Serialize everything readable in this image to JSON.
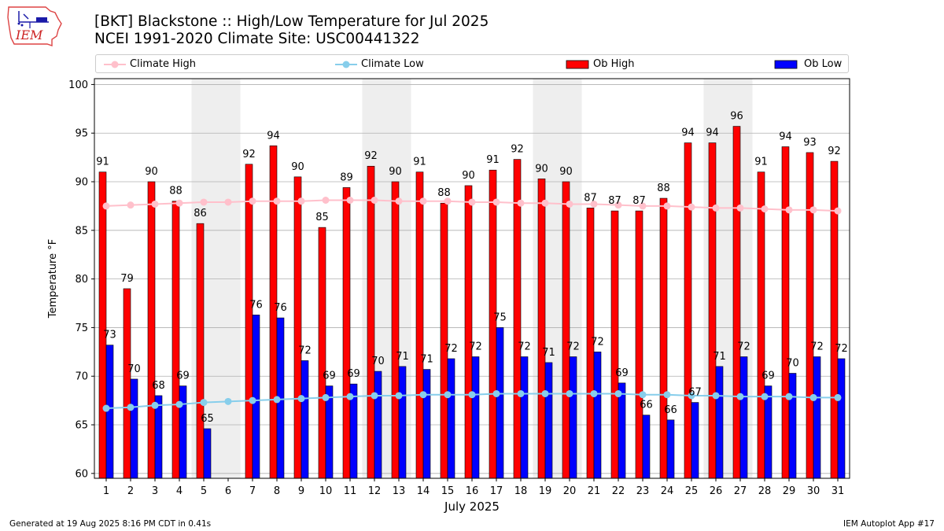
{
  "header": {
    "title_line1": "[BKT] Blackstone :: High/Low Temperature for Jul 2025",
    "title_line2": "NCEI 1991-2020 Climate Site: USC00441322",
    "logo_text": "IEM"
  },
  "legend": {
    "climate_high": "Climate High",
    "climate_low": "Climate Low",
    "ob_high": "Ob High",
    "ob_low": "Ob Low"
  },
  "footer": {
    "generated": "Generated at 19 Aug 2025 8:16 PM CDT in 0.41s",
    "app": "IEM Autoplot App #17"
  },
  "colors": {
    "ob_high": "#ff0000",
    "ob_low": "#0000ff",
    "climate_high": "#ffc0cb",
    "climate_low": "#87ceeb",
    "weekend_shade": "#eeeeee",
    "grid": "#b0b0b0"
  },
  "chart_data": {
    "type": "bar",
    "title": "[BKT] Blackstone :: High/Low Temperature for Jul 2025",
    "subtitle": "NCEI 1991-2020 Climate Site: USC00441322",
    "xlabel": "July 2025",
    "ylabel": "Temperature °F",
    "ylim": [
      59.5,
      100.6
    ],
    "yticks": [
      60,
      65,
      70,
      75,
      80,
      85,
      90,
      95,
      100
    ],
    "grid": "horizontal",
    "legend_position": "top",
    "categories": [
      "1",
      "2",
      "3",
      "4",
      "5",
      "6",
      "7",
      "8",
      "9",
      "10",
      "11",
      "12",
      "13",
      "14",
      "15",
      "16",
      "17",
      "18",
      "19",
      "20",
      "21",
      "22",
      "23",
      "24",
      "25",
      "26",
      "27",
      "28",
      "29",
      "30",
      "31"
    ],
    "shaded_days": [
      [
        5,
        6
      ],
      [
        12,
        13
      ],
      [
        19,
        20
      ],
      [
        26,
        27
      ]
    ],
    "ob_high": {
      "values": [
        91.0,
        79.0,
        90.0,
        88.0,
        85.7,
        null,
        91.8,
        93.7,
        90.5,
        85.3,
        89.4,
        91.6,
        90.0,
        91.0,
        87.8,
        89.6,
        91.2,
        92.3,
        90.3,
        90.0,
        87.3,
        87.0,
        87.0,
        88.3,
        94.0,
        94.0,
        95.7,
        91.0,
        93.6,
        93.0,
        92.1
      ],
      "labels": [
        "91",
        "79",
        "90",
        "88",
        "86",
        "",
        "92",
        "94",
        "90",
        "85",
        "89",
        "92",
        "90",
        "91",
        "88",
        "90",
        "91",
        "92",
        "90",
        "90",
        "87",
        "87",
        "87",
        "88",
        "94",
        "94",
        "96",
        "91",
        "94",
        "93",
        "92"
      ]
    },
    "ob_low": {
      "values": [
        73.2,
        69.7,
        68.0,
        69.0,
        64.6,
        null,
        76.3,
        76.0,
        71.6,
        69.0,
        69.2,
        70.5,
        71.0,
        70.7,
        71.8,
        72.0,
        75.0,
        72.0,
        71.4,
        72.0,
        72.5,
        69.3,
        66.0,
        65.5,
        67.3,
        71.0,
        72.0,
        69.0,
        70.3,
        72.0,
        71.8
      ],
      "labels": [
        "73",
        "70",
        "68",
        "69",
        "65",
        "",
        "76",
        "76",
        "72",
        "69",
        "69",
        "70",
        "71",
        "71",
        "72",
        "72",
        "75",
        "72",
        "71",
        "72",
        "72",
        "69",
        "66",
        "66",
        "67",
        "71",
        "72",
        "69",
        "70",
        "72",
        "72"
      ]
    },
    "climate_high": [
      87.5,
      87.6,
      87.7,
      87.8,
      87.9,
      87.9,
      88.0,
      88.0,
      88.0,
      88.1,
      88.1,
      88.1,
      88.0,
      88.0,
      88.0,
      87.9,
      87.9,
      87.8,
      87.8,
      87.7,
      87.7,
      87.6,
      87.5,
      87.5,
      87.4,
      87.3,
      87.3,
      87.2,
      87.1,
      87.1,
      87.0
    ],
    "climate_low": [
      66.7,
      66.8,
      67.0,
      67.1,
      67.3,
      67.4,
      67.5,
      67.6,
      67.7,
      67.8,
      67.9,
      68.0,
      68.0,
      68.1,
      68.1,
      68.1,
      68.2,
      68.2,
      68.2,
      68.2,
      68.2,
      68.2,
      68.1,
      68.1,
      68.0,
      68.0,
      67.9,
      67.9,
      67.9,
      67.8,
      67.8
    ]
  }
}
